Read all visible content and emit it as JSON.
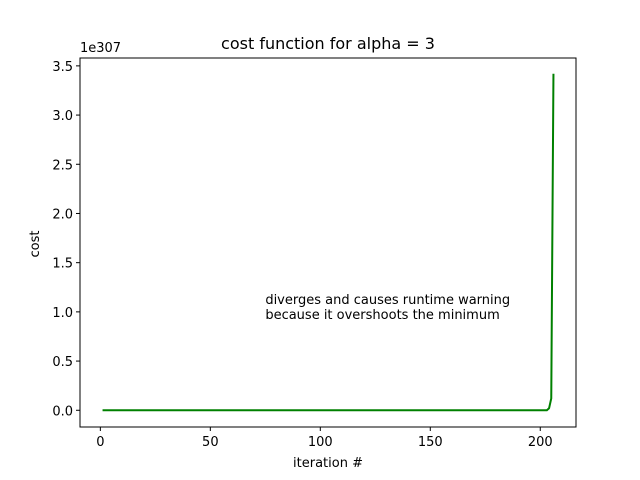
{
  "chart_data": {
    "type": "line",
    "title": "cost function for alpha = 3",
    "xlabel": "iteration #",
    "ylabel": "cost",
    "y_scale_label": "1e307",
    "xlim": [
      -9.25,
      216.25
    ],
    "ylim": [
      -0.17,
      3.58
    ],
    "x_ticks": [
      0,
      50,
      100,
      150,
      200
    ],
    "x_tick_labels": [
      "0",
      "50",
      "100",
      "150",
      "200"
    ],
    "y_ticks": [
      0.0,
      0.5,
      1.0,
      1.5,
      2.0,
      2.5,
      3.0,
      3.5
    ],
    "y_tick_labels": [
      "0.0",
      "0.5",
      "1.0",
      "1.5",
      "2.0",
      "2.5",
      "3.0",
      "3.5"
    ],
    "grid": false,
    "legend": "none",
    "annotation": {
      "lines": [
        "diverges and causes runtime warning",
        "because it overshoots the minimum"
      ],
      "x": 75,
      "y": 1.08
    },
    "series": [
      {
        "color": "#008000",
        "x": [
          1,
          50,
          100,
          150,
          200,
          203,
          204,
          205,
          206
        ],
        "values": [
          0,
          0,
          0,
          0,
          0,
          0.0,
          0.02,
          0.12,
          3.42
        ]
      }
    ]
  }
}
